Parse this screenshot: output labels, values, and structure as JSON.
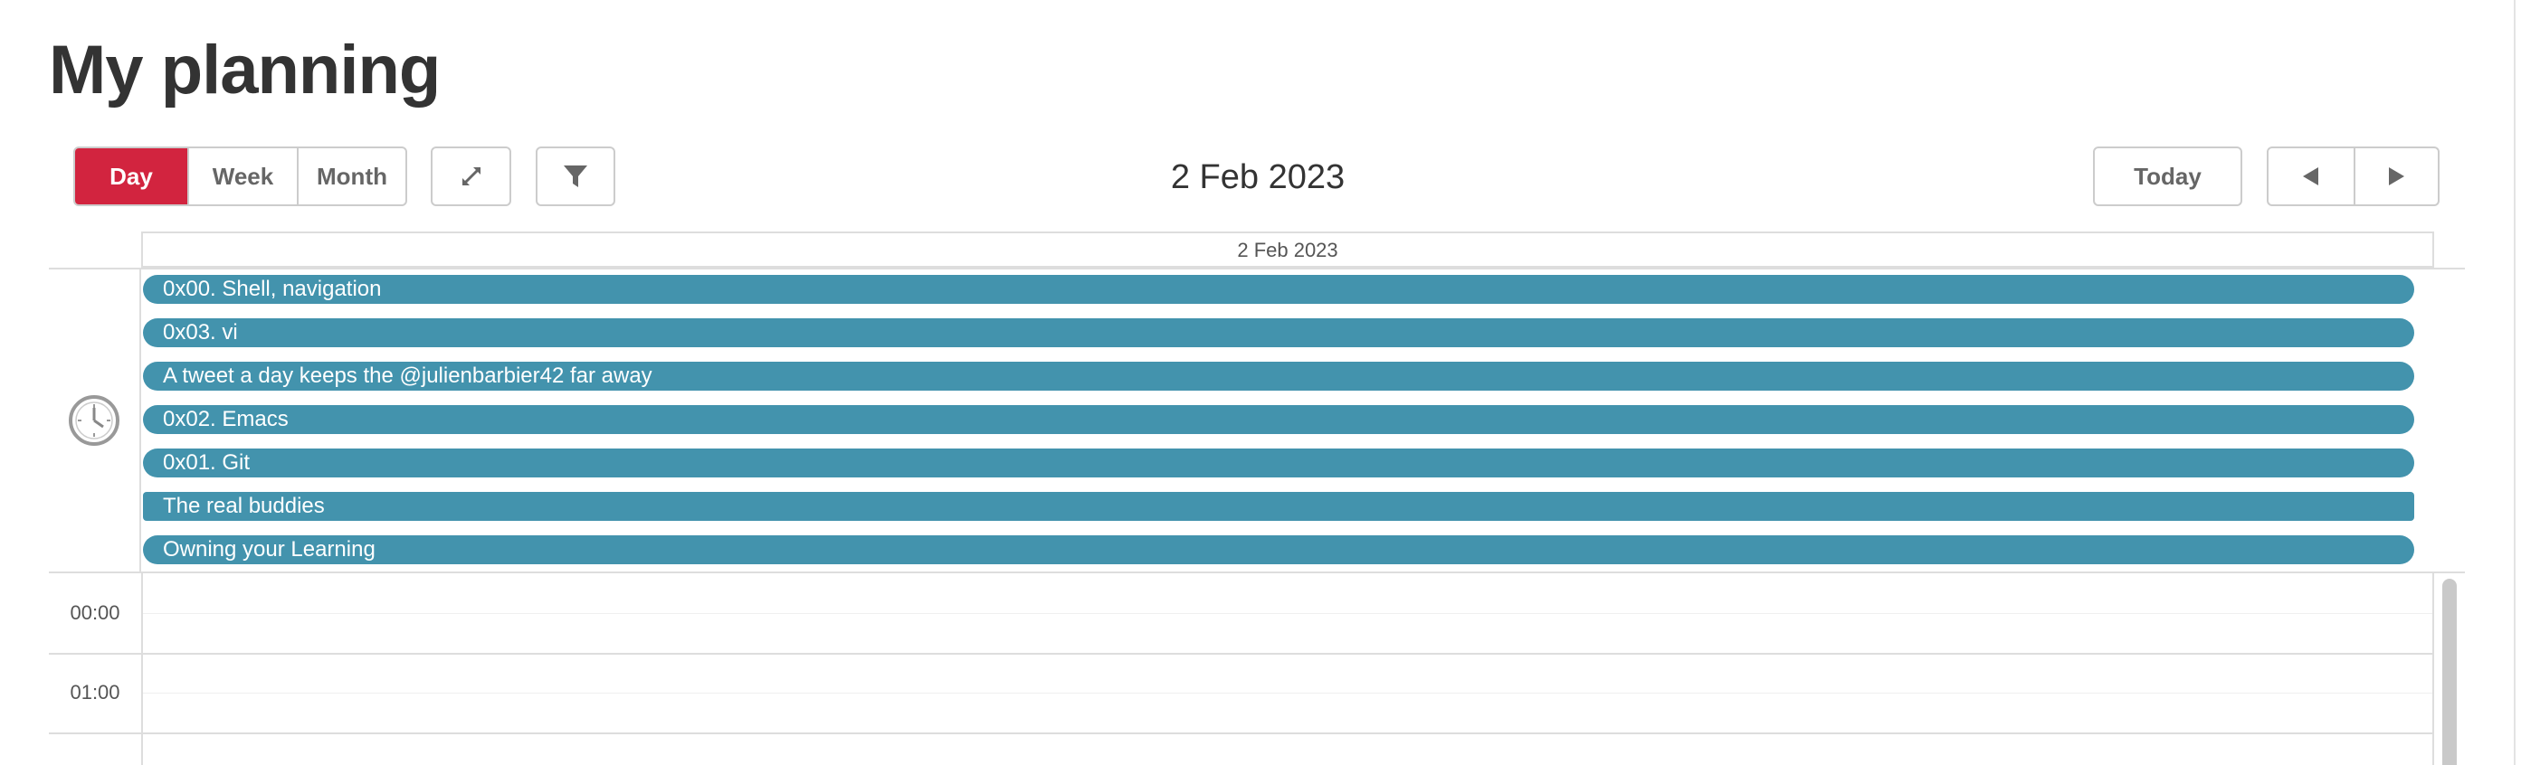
{
  "page": {
    "title": "My planning"
  },
  "toolbar": {
    "views": [
      "Day",
      "Week",
      "Month"
    ],
    "active_view": "Day",
    "expand_icon": "expand-arrows-icon",
    "filter_icon": "funnel-icon",
    "current_date": "2 Feb 2023",
    "today_label": "Today",
    "prev_icon": "triangle-left-icon",
    "next_icon": "triangle-right-icon"
  },
  "calendar": {
    "column_header": "2 Feb 2023",
    "allday_icon": "clock-icon",
    "events": [
      "0x00. Shell, navigation",
      "0x03. vi",
      "A tweet a day keeps the @julienbarbier42 far away",
      "0x02. Emacs",
      "0x01. Git",
      "The real buddies",
      "Owning your Learning"
    ],
    "hours": [
      "00:00",
      "01:00"
    ]
  },
  "colors": {
    "accent": "#d2243f",
    "event": "#4393ad",
    "border": "#dddddd"
  }
}
